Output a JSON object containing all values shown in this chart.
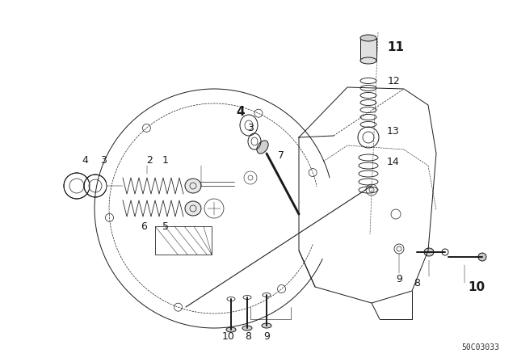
{
  "bg_color": "#ffffff",
  "line_color": "#1a1a1a",
  "diagram_id": "50C03033",
  "figsize": [
    6.4,
    4.48
  ],
  "dpi": 100,
  "label_size": 9,
  "label_bold_size": 11,
  "lw": 0.7
}
